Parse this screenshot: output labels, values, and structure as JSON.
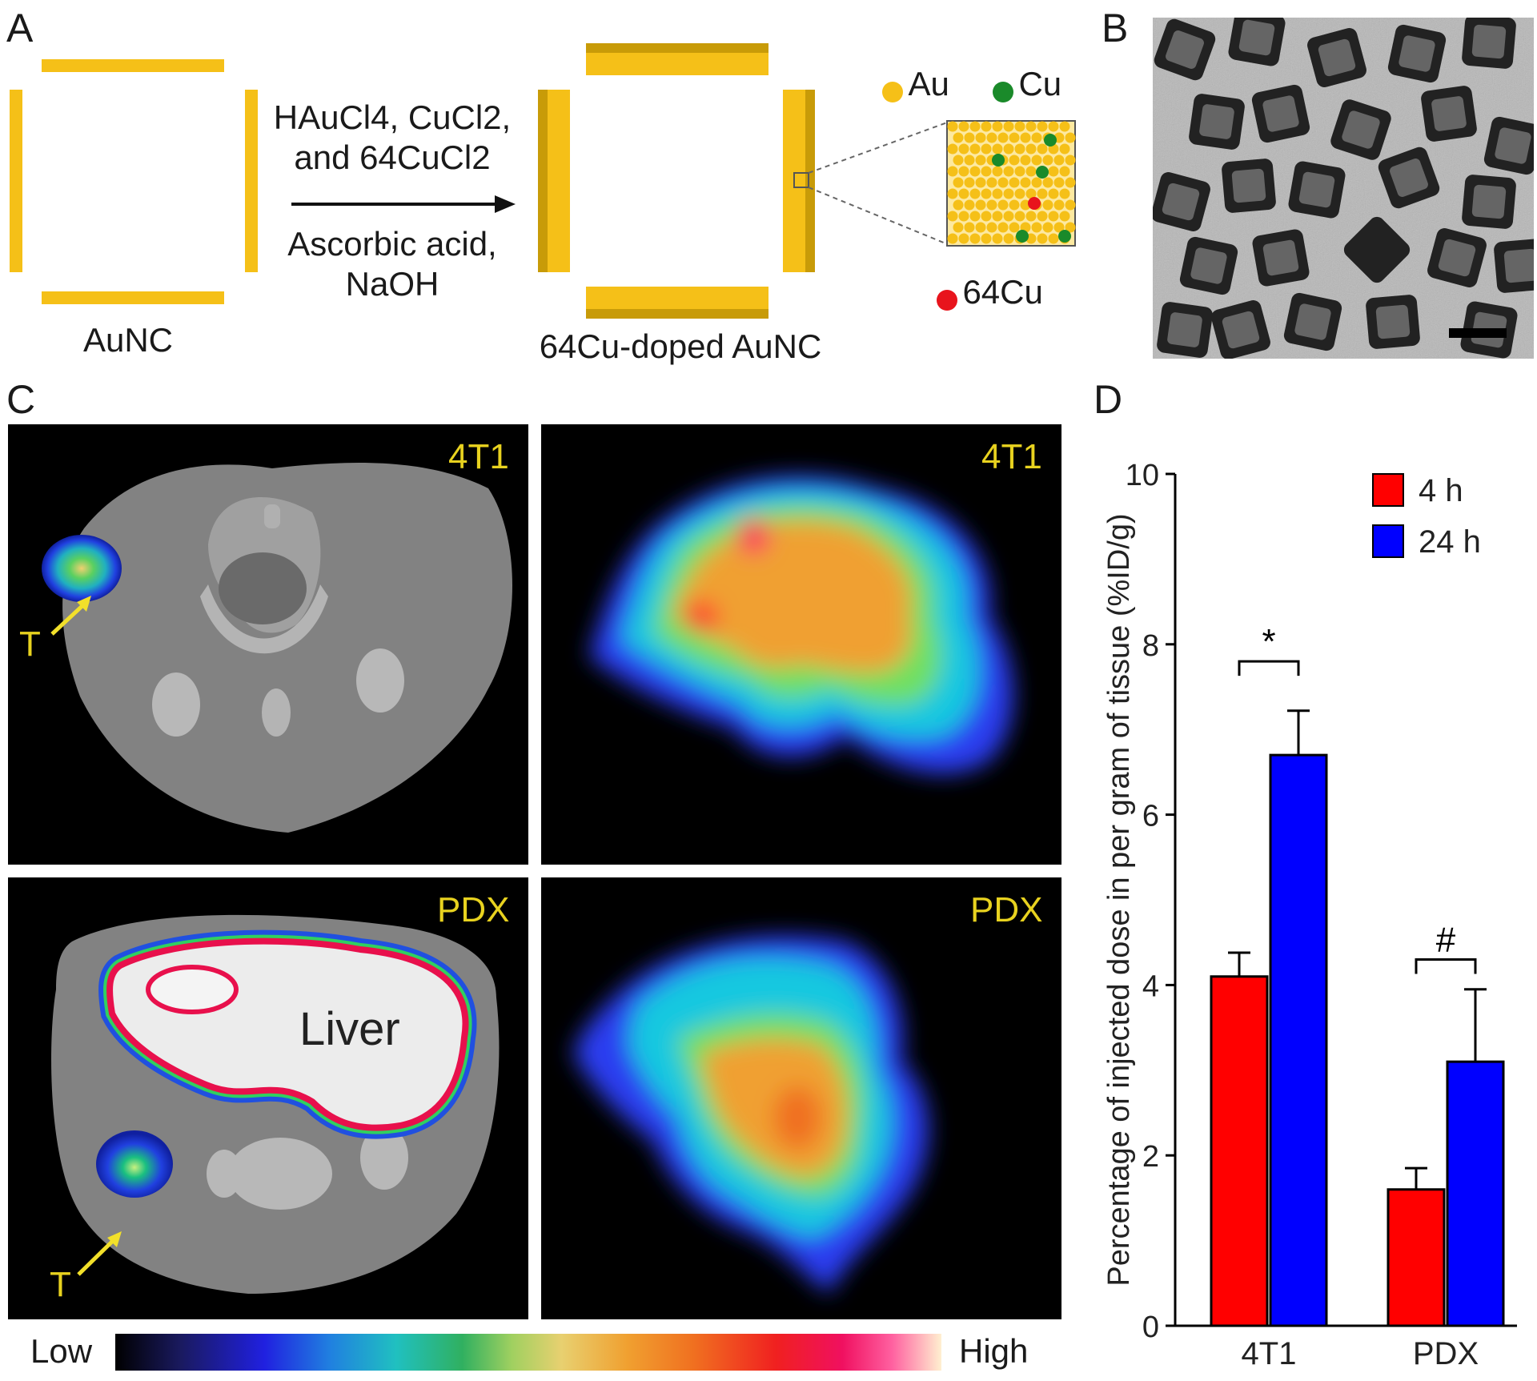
{
  "panels": {
    "A": {
      "letter": "A",
      "reagents_line1": "HAuCl4, CuCl2,",
      "reagents_line2": "and 64CuCl2",
      "conditions_line1": "Ascorbic acid,",
      "conditions_line2": "NaOH",
      "left_label": "AuNC",
      "right_label": "64Cu-doped AuNC",
      "legend": [
        {
          "label": "Au",
          "color": "#f5c018"
        },
        {
          "label": "Cu",
          "color": "#1a8a2a"
        },
        {
          "label": "64Cu",
          "color": "#e8141c"
        }
      ]
    },
    "B": {
      "letter": "B"
    },
    "C": {
      "letter": "C",
      "image_labels": [
        "4T1",
        "4T1",
        "PDX",
        "PDX"
      ],
      "pointer_label": "T",
      "organ_label": "Liver",
      "colorbar_low": "Low",
      "colorbar_high": "High"
    },
    "D": {
      "letter": "D"
    }
  },
  "chart_data": {
    "type": "bar",
    "categories": [
      "4T1",
      "PDX"
    ],
    "series": [
      {
        "name": "4 h",
        "color": "#ff0000",
        "values": [
          4.1,
          1.6
        ],
        "errors": [
          0.28,
          0.25
        ]
      },
      {
        "name": "24 h",
        "color": "#0000ff",
        "values": [
          6.7,
          3.1
        ],
        "errors": [
          0.52,
          0.85
        ]
      }
    ],
    "ylabel": "Percentage of injected dose in per gram of tissue (%ID/g)",
    "ylim": [
      0,
      10
    ],
    "yticks": [
      0,
      2,
      4,
      6,
      8,
      10
    ],
    "legend_position": "top-right",
    "annotations": [
      {
        "category": "4T1",
        "text": "*"
      },
      {
        "category": "PDX",
        "text": "#"
      }
    ]
  }
}
